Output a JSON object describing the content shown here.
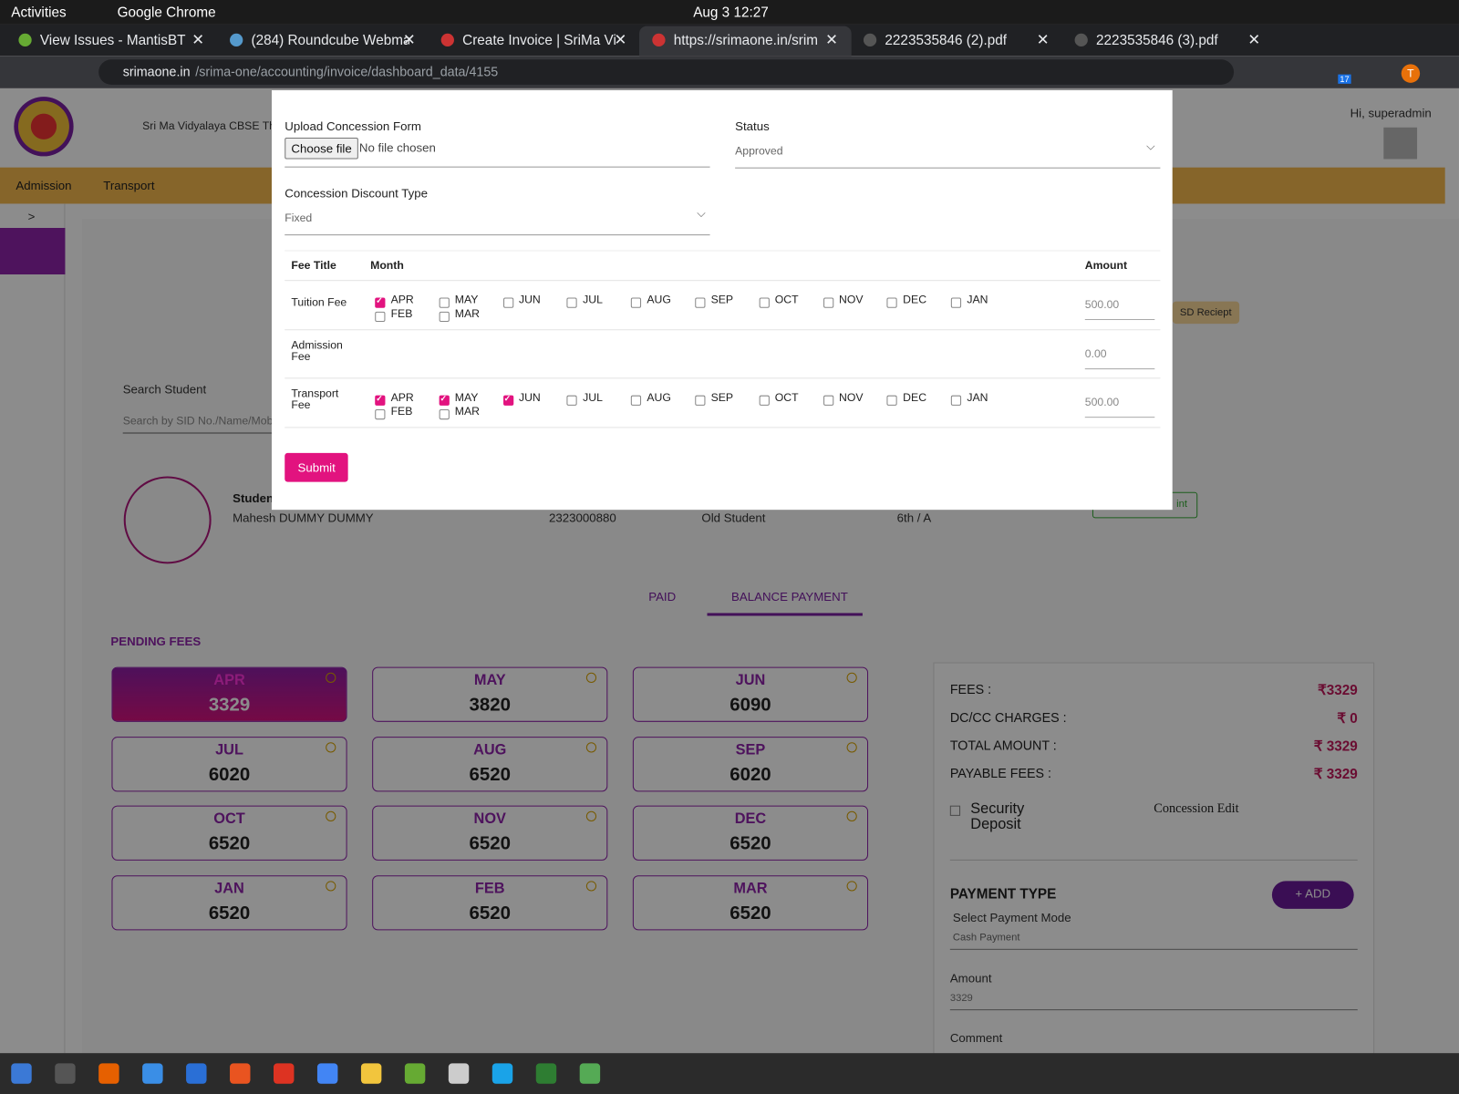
{
  "topbar": {
    "activities": "Activities",
    "app": "Google Chrome",
    "clock": "Aug 3  12:27"
  },
  "tabs": [
    "View Issues - MantisBT",
    "(284) Roundcube Webma",
    "Create Invoice | SriMa Vi",
    "https://srimaone.in/srim",
    "2223535846 (2).pdf",
    "2223535846 (3).pdf"
  ],
  "url": {
    "host": "srimaone.in",
    "path": "/srima-one/accounting/invoice/dashboard_data/4155"
  },
  "browser": {
    "profile": "T",
    "badge": "17"
  },
  "header": {
    "school": "Sri Ma Vidyalaya CBSE Tha",
    "greeting": "Hi, superadmin"
  },
  "nav": [
    "Admission",
    "Transport"
  ],
  "sidebar_toggle": ">",
  "page": {
    "search_label": "Search Student",
    "search_placeholder": "Search by SID No./Name/Mob",
    "student_label": "Studen",
    "student_name": "Mahesh DUMMY DUMMY",
    "sid": "2323000880",
    "student_type": "Old Student",
    "class": "6th / A",
    "sd_receipt": "SD Reciept",
    "print": "int",
    "tabs": [
      "PAID",
      "BALANCE PAYMENT"
    ],
    "pending_title": "PENDING FEES",
    "pending": [
      {
        "month": "APR",
        "amount": 3329
      },
      {
        "month": "MAY",
        "amount": 3820
      },
      {
        "month": "JUN",
        "amount": 6090
      },
      {
        "month": "JUL",
        "amount": 6020
      },
      {
        "month": "AUG",
        "amount": 6520
      },
      {
        "month": "SEP",
        "amount": 6020
      },
      {
        "month": "OCT",
        "amount": 6520
      },
      {
        "month": "NOV",
        "amount": 6520
      },
      {
        "month": "DEC",
        "amount": 6520
      },
      {
        "month": "JAN",
        "amount": 6520
      },
      {
        "month": "FEB",
        "amount": 6520
      },
      {
        "month": "MAR",
        "amount": 6520
      }
    ],
    "summary": [
      {
        "label": "FEES :",
        "value": "₹3329"
      },
      {
        "label": "DC/CC CHARGES :",
        "value": "₹ 0"
      },
      {
        "label": "TOTAL AMOUNT :",
        "value": "₹ 3329"
      },
      {
        "label": "PAYABLE FEES :",
        "value": "₹ 3329"
      }
    ],
    "security_deposit": "Security Deposit",
    "concession_edit": "Concession Edit",
    "payment_type": "PAYMENT TYPE",
    "add": "+ ADD",
    "payment_mode_label": "Select Payment Mode",
    "payment_mode": "Cash Payment",
    "amount_label": "Amount",
    "amount": "3329",
    "comment_label": "Comment"
  },
  "modal": {
    "upload_label": "Upload Concession Form",
    "choose_file": "Choose file",
    "no_file": "No file chosen",
    "status_label": "Status",
    "status": "Approved",
    "discount_label": "Concession Discount Type",
    "discount": "Fixed",
    "headers": [
      "Fee Title",
      "Month",
      "Amount"
    ],
    "months": [
      "APR",
      "MAY",
      "JUN",
      "JUL",
      "AUG",
      "SEP",
      "OCT",
      "NOV",
      "DEC",
      "JAN",
      "FEB",
      "MAR"
    ],
    "rows": [
      {
        "title": "Tuition Fee",
        "checked": [
          true,
          false,
          false,
          false,
          false,
          false,
          false,
          false,
          false,
          false,
          false,
          false
        ],
        "amount": "500.00"
      },
      {
        "title": "Admission Fee",
        "amount": "0.00"
      },
      {
        "title": "Transport Fee",
        "checked": [
          true,
          true,
          true,
          false,
          false,
          false,
          false,
          false,
          false,
          false,
          false,
          false
        ],
        "amount": "500.00"
      }
    ],
    "submit": "Submit"
  }
}
